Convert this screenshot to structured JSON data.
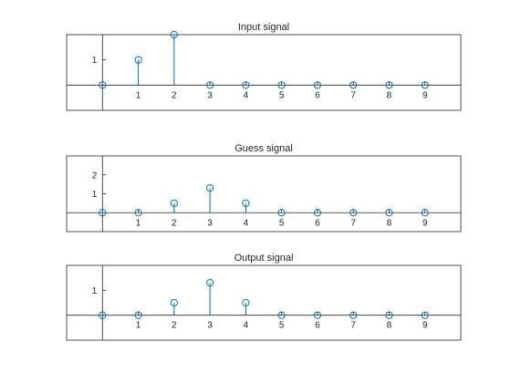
{
  "chart_data": [
    {
      "type": "stem",
      "title": "Input signal",
      "x": [
        0,
        1,
        2,
        3,
        4,
        5,
        6,
        7,
        8,
        9
      ],
      "values": [
        0,
        1,
        2,
        0,
        0,
        0,
        0,
        0,
        0,
        0
      ],
      "xlim": [
        -1,
        10
      ],
      "ylim": [
        -1,
        2
      ],
      "xticks": [
        "1",
        "2",
        "3",
        "4",
        "5",
        "6",
        "7",
        "8",
        "9"
      ],
      "yticks": [
        "1"
      ]
    },
    {
      "type": "stem",
      "title": "Guess signal",
      "x": [
        0,
        1,
        2,
        3,
        4,
        5,
        6,
        7,
        8,
        9
      ],
      "values": [
        0,
        0,
        0.5,
        1.3,
        0.5,
        0,
        0,
        0,
        0,
        0
      ],
      "xlim": [
        -1,
        10
      ],
      "ylim": [
        -1,
        3
      ],
      "xticks": [
        "1",
        "2",
        "3",
        "4",
        "5",
        "6",
        "7",
        "8",
        "9"
      ],
      "yticks": [
        "1",
        "2"
      ]
    },
    {
      "type": "stem",
      "title": "Output signal",
      "x": [
        0,
        1,
        2,
        3,
        4,
        5,
        6,
        7,
        8,
        9
      ],
      "values": [
        0,
        0,
        0.5,
        1.3,
        0.5,
        0,
        0,
        0,
        0,
        0
      ],
      "xlim": [
        -1,
        10
      ],
      "ylim": [
        -1,
        2
      ],
      "xticks": [
        "1",
        "2",
        "3",
        "4",
        "5",
        "6",
        "7",
        "8",
        "9"
      ],
      "yticks": [
        "1"
      ]
    }
  ],
  "colors": {
    "stem": "#0072BD",
    "axes": "#262626",
    "background": "#ffffff"
  }
}
